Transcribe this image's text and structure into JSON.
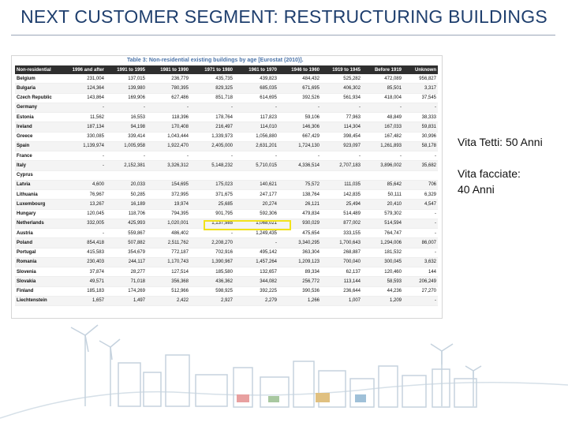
{
  "title": "NEXT CUSTOMER SEGMENT: RESTRUCTURING BUILDINGS",
  "table": {
    "caption": "Table 3: Non-residential existing buildings by age [Eurostat (2010)].",
    "headers": [
      "Non-residential",
      "1996 and after",
      "1991 to 1995",
      "1981 to 1990",
      "1971 to 1980",
      "1961 to 1970",
      "1946 to 1960",
      "1919 to 1945",
      "Before 1919",
      "Unknown"
    ],
    "rows": [
      [
        "Belgium",
        "231,004",
        "137,015",
        "236,779",
        "435,735",
        "439,823",
        "484,432",
        "525,282",
        "472,089",
        "956,827"
      ],
      [
        "Bulgaria",
        "124,364",
        "139,980",
        "780,395",
        "829,325",
        "685,035",
        "671,695",
        "406,302",
        "85,501",
        "3,317"
      ],
      [
        "Czech Republic",
        "143,864",
        "169,906",
        "627,486",
        "851,718",
        "614,695",
        "392,526",
        "561,934",
        "418,004",
        "37,545"
      ],
      [
        "Germany",
        "-",
        "-",
        "-",
        "-",
        "-",
        "-",
        "-",
        "-",
        "-"
      ],
      [
        "Estonia",
        "11,562",
        "16,553",
        "118,396",
        "178,764",
        "117,823",
        "59,106",
        "77,963",
        "48,849",
        "38,333"
      ],
      [
        "Ireland",
        "187,134",
        "94,198",
        "170,408",
        "216,497",
        "114,010",
        "146,306",
        "114,304",
        "167,033",
        "59,831"
      ],
      [
        "Greece",
        "330,085",
        "339,414",
        "1,043,444",
        "1,339,973",
        "1,056,880",
        "667,429",
        "398,454",
        "167,482",
        "30,996"
      ],
      [
        "Spain",
        "1,139,974",
        "1,005,958",
        "1,922,470",
        "2,405,000",
        "2,631,201",
        "1,724,130",
        "923,097",
        "1,261,893",
        "58,178"
      ],
      [
        "France",
        "-",
        "-",
        "-",
        "-",
        "-",
        "-",
        "-",
        "-",
        "-"
      ],
      [
        "Italy",
        "-",
        "2,152,381",
        "3,326,312",
        "5,148,232",
        "5,710,015",
        "4,336,514",
        "2,707,183",
        "3,896,002",
        "35,682"
      ],
      [
        "Cyprus",
        "",
        "",
        "",
        "",
        "",
        "",
        "",
        "",
        ""
      ],
      [
        "Latvia",
        "4,600",
        "20,033",
        "154,695",
        "175,023",
        "140,621",
        "75,572",
        "111,035",
        "85,642",
        "706"
      ],
      [
        "Lithuania",
        "76,967",
        "50,285",
        "372,995",
        "371,675",
        "247,177",
        "138,764",
        "142,835",
        "50,111",
        "6,329"
      ],
      [
        "Luxembourg",
        "13,267",
        "16,189",
        "19,974",
        "25,685",
        "20,274",
        "26,121",
        "25,494",
        "20,410",
        "4,547"
      ],
      [
        "Hungary",
        "120,045",
        "118,706",
        "794,395",
        "901,795",
        "592,306",
        "479,834",
        "514,489",
        "579,302",
        "-"
      ],
      [
        "Netherlands",
        "332,005",
        "425,993",
        "1,020,001",
        "1,137,985",
        "1,068,021",
        "930,029",
        "877,002",
        "514,594",
        "-"
      ],
      [
        "Austria",
        "-",
        "559,867",
        "486,402",
        "-",
        "1,249,435",
        "475,654",
        "333,155",
        "764,747",
        "-"
      ],
      [
        "Poland",
        "854,418",
        "507,882",
        "2,511,762",
        "2,208,270",
        "-",
        "3,340,295",
        "1,700,643",
        "1,294,006",
        "86,007"
      ],
      [
        "Portugal",
        "415,583",
        "354,679",
        "772,187",
        "702,916",
        "495,142",
        "363,304",
        "268,887",
        "181,532",
        "-"
      ],
      [
        "Romania",
        "230,403",
        "244,117",
        "1,170,743",
        "1,390,967",
        "1,457,264",
        "1,209,123",
        "700,040",
        "300,045",
        "3,632"
      ],
      [
        "Slovenia",
        "37,874",
        "28,277",
        "127,514",
        "185,580",
        "132,657",
        "89,334",
        "62,137",
        "120,460",
        "144"
      ],
      [
        "Slovakia",
        "49,571",
        "71,018",
        "356,368",
        "436,362",
        "344,082",
        "256,772",
        "113,144",
        "58,593",
        "206,249"
      ],
      [
        "Finland",
        "185,183",
        "174,269",
        "512,966",
        "598,925",
        "392,225",
        "390,536",
        "236,644",
        "44,236",
        "27,270"
      ],
      [
        "Liechtenstein",
        "1,657",
        "1,497",
        "2,422",
        "2,927",
        "2,279",
        "1,266",
        "1,007",
        "1,209",
        "-"
      ]
    ]
  },
  "side": {
    "roofs": "Vita Tetti: 50 Anni",
    "facades_line1": "Vita facciate:",
    "facades_line2": "40 Anni"
  }
}
